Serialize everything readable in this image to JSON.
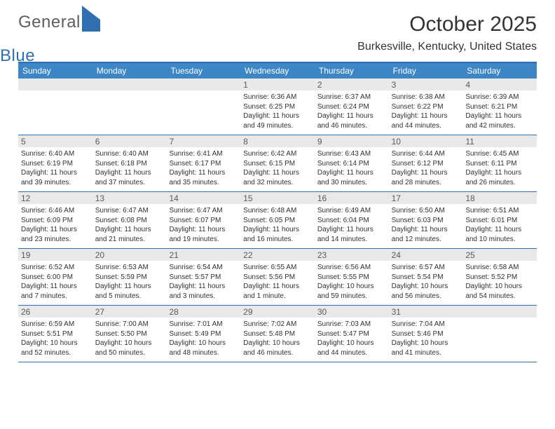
{
  "brand": {
    "part1": "General",
    "part2": "Blue"
  },
  "title": "October 2025",
  "location": "Burkesville, Kentucky, United States",
  "colors": {
    "header_bg": "#3d86c6",
    "rule": "#2f6fb0",
    "daynum_bg": "#e9e9e9",
    "text": "#313131"
  },
  "weekdays": [
    "Sunday",
    "Monday",
    "Tuesday",
    "Wednesday",
    "Thursday",
    "Friday",
    "Saturday"
  ],
  "weeks": [
    [
      {
        "n": "",
        "lines": []
      },
      {
        "n": "",
        "lines": []
      },
      {
        "n": "",
        "lines": []
      },
      {
        "n": "1",
        "lines": [
          "Sunrise: 6:36 AM",
          "Sunset: 6:25 PM",
          "Daylight: 11 hours and 49 minutes."
        ]
      },
      {
        "n": "2",
        "lines": [
          "Sunrise: 6:37 AM",
          "Sunset: 6:24 PM",
          "Daylight: 11 hours and 46 minutes."
        ]
      },
      {
        "n": "3",
        "lines": [
          "Sunrise: 6:38 AM",
          "Sunset: 6:22 PM",
          "Daylight: 11 hours and 44 minutes."
        ]
      },
      {
        "n": "4",
        "lines": [
          "Sunrise: 6:39 AM",
          "Sunset: 6:21 PM",
          "Daylight: 11 hours and 42 minutes."
        ]
      }
    ],
    [
      {
        "n": "5",
        "lines": [
          "Sunrise: 6:40 AM",
          "Sunset: 6:19 PM",
          "Daylight: 11 hours and 39 minutes."
        ]
      },
      {
        "n": "6",
        "lines": [
          "Sunrise: 6:40 AM",
          "Sunset: 6:18 PM",
          "Daylight: 11 hours and 37 minutes."
        ]
      },
      {
        "n": "7",
        "lines": [
          "Sunrise: 6:41 AM",
          "Sunset: 6:17 PM",
          "Daylight: 11 hours and 35 minutes."
        ]
      },
      {
        "n": "8",
        "lines": [
          "Sunrise: 6:42 AM",
          "Sunset: 6:15 PM",
          "Daylight: 11 hours and 32 minutes."
        ]
      },
      {
        "n": "9",
        "lines": [
          "Sunrise: 6:43 AM",
          "Sunset: 6:14 PM",
          "Daylight: 11 hours and 30 minutes."
        ]
      },
      {
        "n": "10",
        "lines": [
          "Sunrise: 6:44 AM",
          "Sunset: 6:12 PM",
          "Daylight: 11 hours and 28 minutes."
        ]
      },
      {
        "n": "11",
        "lines": [
          "Sunrise: 6:45 AM",
          "Sunset: 6:11 PM",
          "Daylight: 11 hours and 26 minutes."
        ]
      }
    ],
    [
      {
        "n": "12",
        "lines": [
          "Sunrise: 6:46 AM",
          "Sunset: 6:09 PM",
          "Daylight: 11 hours and 23 minutes."
        ]
      },
      {
        "n": "13",
        "lines": [
          "Sunrise: 6:47 AM",
          "Sunset: 6:08 PM",
          "Daylight: 11 hours and 21 minutes."
        ]
      },
      {
        "n": "14",
        "lines": [
          "Sunrise: 6:47 AM",
          "Sunset: 6:07 PM",
          "Daylight: 11 hours and 19 minutes."
        ]
      },
      {
        "n": "15",
        "lines": [
          "Sunrise: 6:48 AM",
          "Sunset: 6:05 PM",
          "Daylight: 11 hours and 16 minutes."
        ]
      },
      {
        "n": "16",
        "lines": [
          "Sunrise: 6:49 AM",
          "Sunset: 6:04 PM",
          "Daylight: 11 hours and 14 minutes."
        ]
      },
      {
        "n": "17",
        "lines": [
          "Sunrise: 6:50 AM",
          "Sunset: 6:03 PM",
          "Daylight: 11 hours and 12 minutes."
        ]
      },
      {
        "n": "18",
        "lines": [
          "Sunrise: 6:51 AM",
          "Sunset: 6:01 PM",
          "Daylight: 11 hours and 10 minutes."
        ]
      }
    ],
    [
      {
        "n": "19",
        "lines": [
          "Sunrise: 6:52 AM",
          "Sunset: 6:00 PM",
          "Daylight: 11 hours and 7 minutes."
        ]
      },
      {
        "n": "20",
        "lines": [
          "Sunrise: 6:53 AM",
          "Sunset: 5:59 PM",
          "Daylight: 11 hours and 5 minutes."
        ]
      },
      {
        "n": "21",
        "lines": [
          "Sunrise: 6:54 AM",
          "Sunset: 5:57 PM",
          "Daylight: 11 hours and 3 minutes."
        ]
      },
      {
        "n": "22",
        "lines": [
          "Sunrise: 6:55 AM",
          "Sunset: 5:56 PM",
          "Daylight: 11 hours and 1 minute."
        ]
      },
      {
        "n": "23",
        "lines": [
          "Sunrise: 6:56 AM",
          "Sunset: 5:55 PM",
          "Daylight: 10 hours and 59 minutes."
        ]
      },
      {
        "n": "24",
        "lines": [
          "Sunrise: 6:57 AM",
          "Sunset: 5:54 PM",
          "Daylight: 10 hours and 56 minutes."
        ]
      },
      {
        "n": "25",
        "lines": [
          "Sunrise: 6:58 AM",
          "Sunset: 5:52 PM",
          "Daylight: 10 hours and 54 minutes."
        ]
      }
    ],
    [
      {
        "n": "26",
        "lines": [
          "Sunrise: 6:59 AM",
          "Sunset: 5:51 PM",
          "Daylight: 10 hours and 52 minutes."
        ]
      },
      {
        "n": "27",
        "lines": [
          "Sunrise: 7:00 AM",
          "Sunset: 5:50 PM",
          "Daylight: 10 hours and 50 minutes."
        ]
      },
      {
        "n": "28",
        "lines": [
          "Sunrise: 7:01 AM",
          "Sunset: 5:49 PM",
          "Daylight: 10 hours and 48 minutes."
        ]
      },
      {
        "n": "29",
        "lines": [
          "Sunrise: 7:02 AM",
          "Sunset: 5:48 PM",
          "Daylight: 10 hours and 46 minutes."
        ]
      },
      {
        "n": "30",
        "lines": [
          "Sunrise: 7:03 AM",
          "Sunset: 5:47 PM",
          "Daylight: 10 hours and 44 minutes."
        ]
      },
      {
        "n": "31",
        "lines": [
          "Sunrise: 7:04 AM",
          "Sunset: 5:46 PM",
          "Daylight: 10 hours and 41 minutes."
        ]
      },
      {
        "n": "",
        "lines": []
      }
    ]
  ]
}
